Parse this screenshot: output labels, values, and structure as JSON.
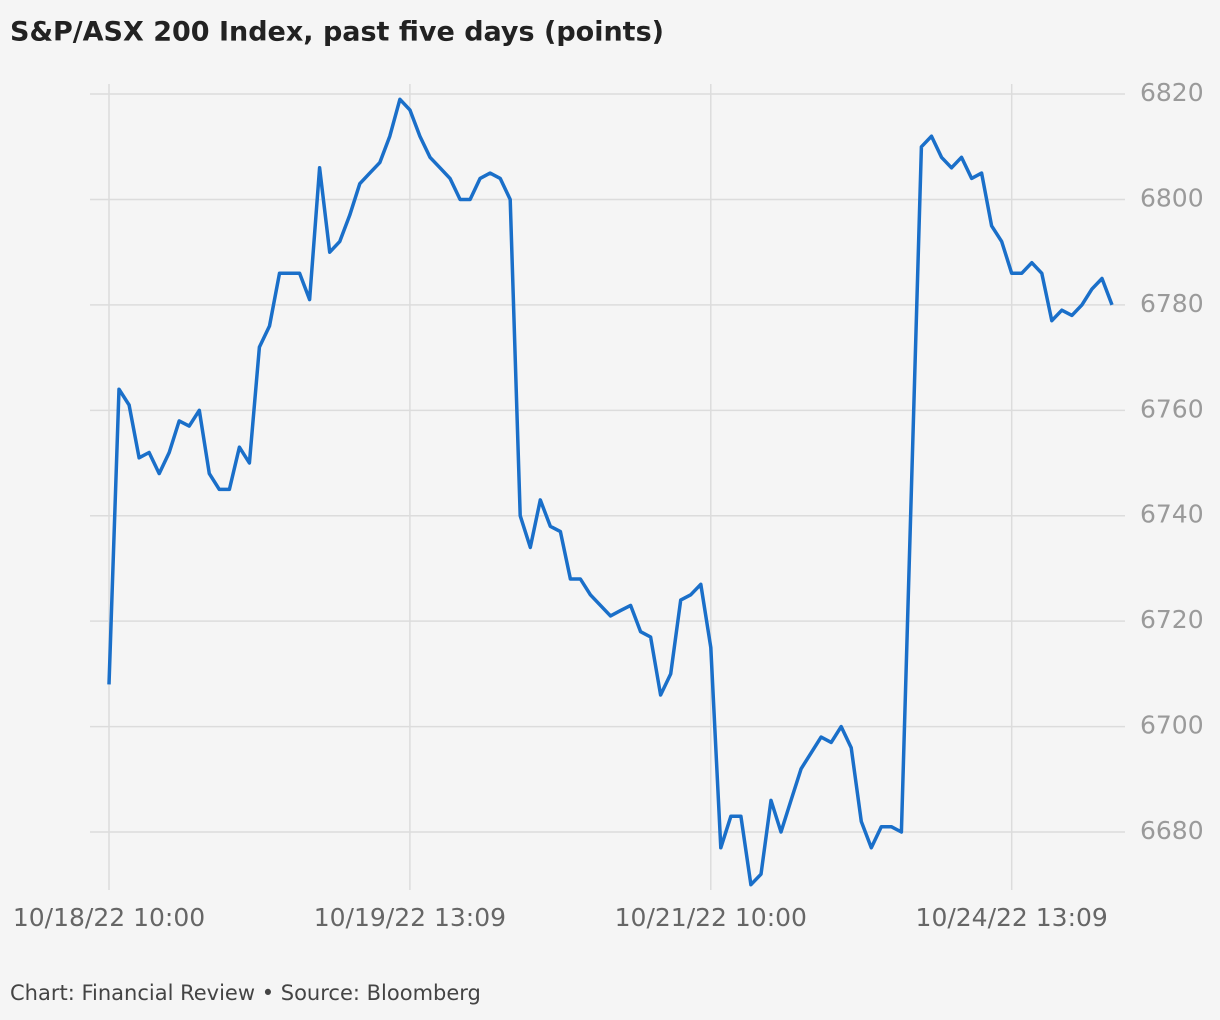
{
  "chart_data": {
    "type": "line",
    "title": "S&P/ASX 200 Index, past five days (points)",
    "source": "Chart: Financial Review • Source: Bloomberg",
    "categories": [
      "10/18/22 10:00",
      null,
      null,
      null,
      null,
      null,
      null,
      null,
      null,
      null,
      null,
      null,
      null,
      null,
      null,
      null,
      null,
      null,
      null,
      null,
      null,
      null,
      null,
      null,
      null,
      null,
      null,
      null,
      null,
      null,
      "10/19/22 13:09",
      null,
      null,
      null,
      null,
      null,
      null,
      null,
      null,
      null,
      null,
      null,
      null,
      null,
      null,
      null,
      null,
      null,
      null,
      null,
      null,
      null,
      null,
      null,
      null,
      null,
      null,
      null,
      null,
      null,
      "10/21/22 10:00",
      null,
      null,
      null,
      null,
      null,
      null,
      null,
      null,
      null,
      null,
      null,
      null,
      null,
      null,
      null,
      null,
      null,
      null,
      null,
      null,
      null,
      null,
      null,
      null,
      null,
      null,
      null,
      null,
      null,
      "10/24/22 13:09",
      null,
      null,
      null,
      null,
      null,
      null,
      null,
      null,
      null,
      null
    ],
    "series": [
      {
        "name": "S&P/ASX 200",
        "color": "#1a6fc9",
        "values": [
          6708,
          6764,
          6761,
          6751,
          6752,
          6748,
          6752,
          6758,
          6757,
          6760,
          6748,
          6745,
          6745,
          6753,
          6750,
          6772,
          6776,
          6786,
          6786,
          6786,
          6781,
          6806,
          6790,
          6792,
          6797,
          6803,
          6805,
          6807,
          6812,
          6819,
          6817,
          6812,
          6808,
          6806,
          6804,
          6800,
          6800,
          6804,
          6805,
          6804,
          6800,
          6740,
          6734,
          6743,
          6738,
          6737,
          6728,
          6728,
          6725,
          6723,
          6721,
          6722,
          6723,
          6718,
          6717,
          6706,
          6710,
          6724,
          6725,
          6727,
          6715,
          6677,
          6683,
          6683,
          6670,
          6672,
          6686,
          6680,
          6686,
          6692,
          6695,
          6698,
          6697,
          6700,
          6696,
          6682,
          6677,
          6681,
          6681,
          6680,
          6745,
          6810,
          6812,
          6808,
          6806,
          6808,
          6804,
          6805,
          6795,
          6792,
          6786,
          6786,
          6788,
          6786,
          6777,
          6779,
          6778,
          6780,
          6783,
          6785,
          6780
        ]
      }
    ],
    "ylim": [
      6669,
      6822
    ],
    "yticks": [
      6680,
      6700,
      6720,
      6740,
      6760,
      6780,
      6800,
      6820
    ],
    "grid": true
  }
}
